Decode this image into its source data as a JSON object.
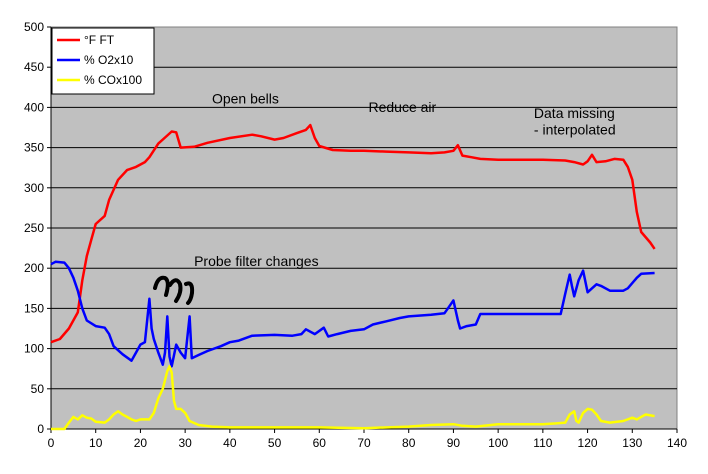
{
  "chart_data": {
    "type": "line",
    "title": "",
    "xlabel": "",
    "ylabel": "",
    "xlim": [
      0,
      140
    ],
    "ylim": [
      0,
      500
    ],
    "xticks": [
      0,
      10,
      20,
      30,
      40,
      50,
      60,
      70,
      80,
      90,
      100,
      110,
      120,
      130,
      140
    ],
    "yticks": [
      0,
      50,
      100,
      150,
      200,
      250,
      300,
      350,
      400,
      450,
      500
    ],
    "grid": "horizontal",
    "background": "#c0c0c0",
    "legend_position": "top-left",
    "series": [
      {
        "name": "°F FT",
        "color": "#ff0000",
        "points": [
          [
            0,
            108
          ],
          [
            2,
            112
          ],
          [
            4,
            125
          ],
          [
            6,
            145
          ],
          [
            7,
            185
          ],
          [
            8,
            215
          ],
          [
            9,
            235
          ],
          [
            10,
            255
          ],
          [
            12,
            265
          ],
          [
            13,
            285
          ],
          [
            15,
            310
          ],
          [
            17,
            322
          ],
          [
            19,
            326
          ],
          [
            21,
            332
          ],
          [
            22,
            338
          ],
          [
            24,
            355
          ],
          [
            26,
            365
          ],
          [
            27,
            370
          ],
          [
            28,
            369
          ],
          [
            29,
            350
          ],
          [
            32,
            351
          ],
          [
            35,
            356
          ],
          [
            40,
            362
          ],
          [
            45,
            366
          ],
          [
            47,
            364
          ],
          [
            50,
            360
          ],
          [
            52,
            362
          ],
          [
            55,
            368
          ],
          [
            57,
            372
          ],
          [
            58,
            378
          ],
          [
            59,
            362
          ],
          [
            60,
            352
          ],
          [
            63,
            347
          ],
          [
            67,
            346
          ],
          [
            70,
            346
          ],
          [
            75,
            345
          ],
          [
            80,
            344
          ],
          [
            85,
            343
          ],
          [
            88,
            344
          ],
          [
            90,
            346
          ],
          [
            91,
            353
          ],
          [
            92,
            340
          ],
          [
            94,
            338
          ],
          [
            96,
            336
          ],
          [
            100,
            335
          ],
          [
            105,
            335
          ],
          [
            110,
            335
          ],
          [
            115,
            334
          ],
          [
            117,
            332
          ],
          [
            119,
            329
          ],
          [
            120,
            333
          ],
          [
            121,
            341
          ],
          [
            122,
            332
          ],
          [
            124,
            333
          ],
          [
            126,
            336
          ],
          [
            128,
            335
          ],
          [
            129,
            326
          ],
          [
            130,
            310
          ],
          [
            131,
            270
          ],
          [
            132,
            245
          ],
          [
            134,
            232
          ],
          [
            135,
            224
          ]
        ]
      },
      {
        "name": "% O2x10",
        "color": "#0000ff",
        "points": [
          [
            0,
            205
          ],
          [
            1,
            208
          ],
          [
            3,
            207
          ],
          [
            4,
            200
          ],
          [
            5,
            188
          ],
          [
            6,
            172
          ],
          [
            7,
            150
          ],
          [
            8,
            135
          ],
          [
            10,
            128
          ],
          [
            12,
            126
          ],
          [
            13,
            118
          ],
          [
            14,
            103
          ],
          [
            16,
            93
          ],
          [
            18,
            85
          ],
          [
            19,
            95
          ],
          [
            20,
            105
          ],
          [
            21,
            108
          ],
          [
            22,
            162
          ],
          [
            22.5,
            125
          ],
          [
            23,
            112
          ],
          [
            24,
            95
          ],
          [
            25,
            80
          ],
          [
            25.5,
            95
          ],
          [
            26,
            140
          ],
          [
            26.5,
            90
          ],
          [
            27,
            78
          ],
          [
            28,
            105
          ],
          [
            29,
            95
          ],
          [
            30,
            88
          ],
          [
            31,
            140
          ],
          [
            31.5,
            88
          ],
          [
            33,
            92
          ],
          [
            35,
            97
          ],
          [
            38,
            103
          ],
          [
            40,
            108
          ],
          [
            42,
            110
          ],
          [
            45,
            116
          ],
          [
            50,
            117
          ],
          [
            54,
            116
          ],
          [
            56,
            118
          ],
          [
            57,
            124
          ],
          [
            59,
            118
          ],
          [
            61,
            126
          ],
          [
            62,
            115
          ],
          [
            64,
            118
          ],
          [
            67,
            122
          ],
          [
            70,
            124
          ],
          [
            72,
            130
          ],
          [
            75,
            134
          ],
          [
            78,
            138
          ],
          [
            80,
            140
          ],
          [
            85,
            142
          ],
          [
            88,
            144
          ],
          [
            89,
            152
          ],
          [
            90,
            160
          ],
          [
            91,
            135
          ],
          [
            91.5,
            125
          ],
          [
            93,
            128
          ],
          [
            95,
            130
          ],
          [
            96,
            143
          ],
          [
            100,
            143
          ],
          [
            105,
            143
          ],
          [
            110,
            143
          ],
          [
            114,
            143
          ],
          [
            115,
            168
          ],
          [
            116,
            192
          ],
          [
            116.5,
            178
          ],
          [
            117,
            165
          ],
          [
            118,
            185
          ],
          [
            119,
            197
          ],
          [
            120,
            170
          ],
          [
            121,
            175
          ],
          [
            122,
            180
          ],
          [
            123,
            178
          ],
          [
            125,
            172
          ],
          [
            128,
            172
          ],
          [
            129,
            175
          ],
          [
            131,
            188
          ],
          [
            132,
            193
          ],
          [
            135,
            194
          ]
        ]
      },
      {
        "name": "% COx100",
        "color": "#ffff00",
        "points": [
          [
            0,
            0
          ],
          [
            3,
            0
          ],
          [
            4,
            8
          ],
          [
            5,
            15
          ],
          [
            6,
            12
          ],
          [
            7,
            17
          ],
          [
            8,
            14
          ],
          [
            9,
            13
          ],
          [
            10,
            9
          ],
          [
            12,
            8
          ],
          [
            13,
            12
          ],
          [
            14,
            18
          ],
          [
            15,
            22
          ],
          [
            16,
            18
          ],
          [
            17,
            15
          ],
          [
            18,
            12
          ],
          [
            19,
            10
          ],
          [
            20,
            12
          ],
          [
            22,
            12
          ],
          [
            23,
            20
          ],
          [
            24,
            38
          ],
          [
            25,
            50
          ],
          [
            26,
            72
          ],
          [
            26.5,
            78
          ],
          [
            27,
            70
          ],
          [
            27.5,
            35
          ],
          [
            28,
            25
          ],
          [
            29,
            25
          ],
          [
            30,
            20
          ],
          [
            31,
            10
          ],
          [
            33,
            5
          ],
          [
            36,
            3
          ],
          [
            40,
            2
          ],
          [
            50,
            2
          ],
          [
            60,
            2
          ],
          [
            70,
            1
          ],
          [
            80,
            3
          ],
          [
            85,
            5
          ],
          [
            90,
            6
          ],
          [
            92,
            4
          ],
          [
            95,
            3
          ],
          [
            100,
            6
          ],
          [
            105,
            6
          ],
          [
            110,
            6
          ],
          [
            113,
            7
          ],
          [
            115,
            8
          ],
          [
            116,
            18
          ],
          [
            117,
            22
          ],
          [
            117.5,
            10
          ],
          [
            118,
            8
          ],
          [
            119,
            20
          ],
          [
            120,
            25
          ],
          [
            121,
            24
          ],
          [
            122,
            18
          ],
          [
            123,
            10
          ],
          [
            125,
            8
          ],
          [
            128,
            10
          ],
          [
            130,
            14
          ],
          [
            131,
            12
          ],
          [
            132,
            15
          ],
          [
            133,
            18
          ],
          [
            135,
            16
          ]
        ]
      }
    ],
    "annotations": [
      {
        "text": "Open bells",
        "x": 36,
        "y": 405
      },
      {
        "text": "Reduce air",
        "x": 71,
        "y": 394
      },
      {
        "text": "Data missing",
        "x": 108,
        "y": 387
      },
      {
        "text": "- interpolated",
        "x": 108,
        "y": 366
      },
      {
        "text": "Probe filter changes",
        "x": 32,
        "y": 203
      }
    ]
  }
}
